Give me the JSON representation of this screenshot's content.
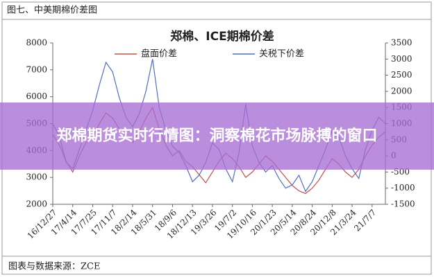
{
  "caption": "图七、中美期棉价差图",
  "chart_data": {
    "type": "line",
    "title": "郑棉、ICE期棉价差",
    "categories": [
      "16/12/27",
      null,
      null,
      "17/4/14",
      null,
      null,
      "17/7/25",
      null,
      null,
      "17/11/7",
      null,
      null,
      "18/2/14",
      null,
      null,
      "18/5/31",
      null,
      null,
      "18/9/6",
      null,
      null,
      "18/12/13",
      null,
      null,
      "19/3/26",
      null,
      null,
      "19/7/2",
      null,
      null,
      "19/10/16",
      null,
      null,
      "20/1/23",
      null,
      null,
      "20/5/14",
      null,
      null,
      "20/8/24",
      null,
      null,
      "20/12/8",
      null,
      null,
      "21/3/24",
      null,
      null,
      "21/7/7",
      null,
      null
    ],
    "series": [
      {
        "name": "盘面价差",
        "color": "#c0504d",
        "values": [
          4600,
          4200,
          3600,
          3200,
          3800,
          4300,
          4500,
          5000,
          5400,
          5200,
          4800,
          4500,
          4300,
          4700,
          5200,
          5600,
          4800,
          4200,
          3800,
          4000,
          3600,
          3400,
          3100,
          2800,
          3200,
          3600,
          3900,
          3700,
          3400,
          3000,
          3200,
          3500,
          3800,
          3600,
          3300,
          3000,
          2700,
          2500,
          2400,
          2600,
          2900,
          3300,
          3700,
          3500,
          3200,
          3000,
          3300,
          3800,
          4200,
          4500,
          4700
        ]
      },
      {
        "name": "关税下价差",
        "color": "#4f6fc0",
        "axis": "y2",
        "values": [
          1000,
          600,
          -200,
          -400,
          200,
          800,
          1400,
          2200,
          2900,
          2600,
          1800,
          1200,
          900,
          1300,
          2000,
          3000,
          1500,
          800,
          300,
          100,
          -300,
          -800,
          -600,
          -200,
          400,
          200,
          -400,
          -800,
          100,
          1600,
          300,
          -200,
          -500,
          -300,
          -700,
          -1000,
          -900,
          -600,
          -1100,
          -800,
          -300,
          200,
          800,
          600,
          0,
          -400,
          -700,
          200,
          800,
          1200,
          1000
        ]
      }
    ],
    "ylim": [
      2000,
      8000
    ],
    "yticks": [
      2000,
      3000,
      4000,
      5000,
      6000,
      7000,
      8000
    ],
    "y2lim": [
      -1500,
      3500
    ],
    "y2ticks": [
      -1500,
      -1000,
      -500,
      0,
      500,
      1000,
      1500,
      2000,
      2500,
      3000,
      3500
    ]
  },
  "banner": "郑棉期货实时行情图：洞察棉花市场脉搏的窗口",
  "footer": "图表与数据来源：ZCE"
}
